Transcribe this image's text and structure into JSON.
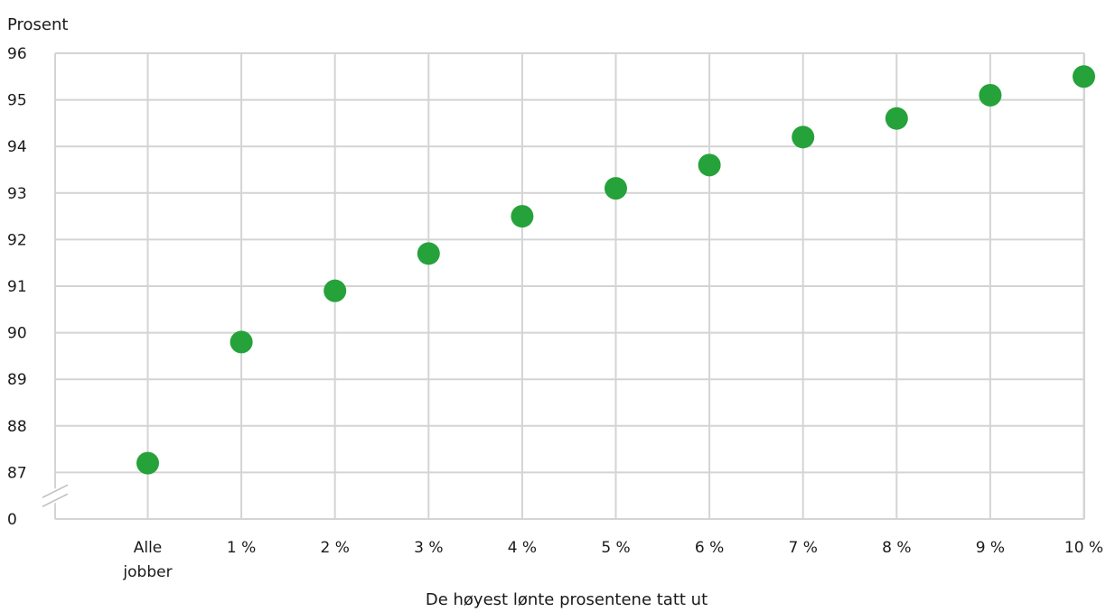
{
  "chart_data": {
    "type": "scatter",
    "ylabel": "Prosent",
    "xlabel": "De høyest lønte prosentene tatt ut",
    "categories": [
      [
        "Alle",
        "jobber"
      ],
      [
        "1 %"
      ],
      [
        "2 %"
      ],
      [
        "3 %"
      ],
      [
        "4 %"
      ],
      [
        "5 %"
      ],
      [
        "6 %"
      ],
      [
        "7 %"
      ],
      [
        "8 %"
      ],
      [
        "9 %"
      ],
      [
        "10 %"
      ]
    ],
    "values": [
      87.2,
      89.8,
      90.9,
      91.7,
      92.5,
      93.1,
      93.6,
      94.2,
      94.6,
      95.1,
      95.5
    ],
    "yticks": [
      "0",
      "87",
      "88",
      "89",
      "90",
      "91",
      "92",
      "93",
      "94",
      "95",
      "96"
    ],
    "ylim": [
      87,
      96
    ],
    "axis_break": true,
    "grid": true,
    "marker_color": "#25a23a"
  }
}
